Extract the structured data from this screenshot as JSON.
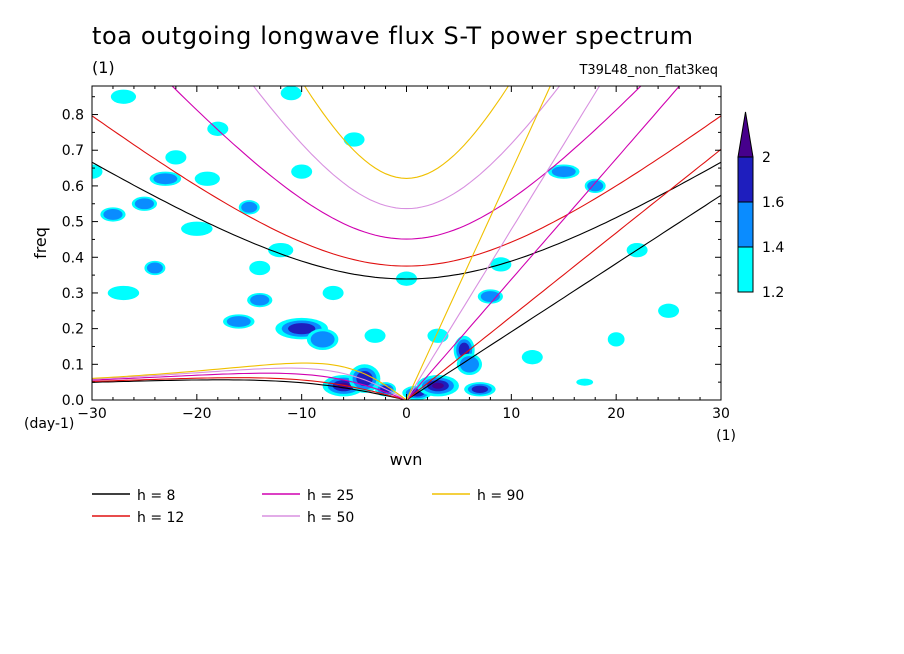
{
  "header": {
    "title": "toa outgoing longwave flux S-T power spectrum",
    "units": "(1)",
    "run": "T39L48_non_flat3keq"
  },
  "chart_data": {
    "type": "heatmap",
    "xlabel": "wvn",
    "ylabel": "freq",
    "xunit": "(1)",
    "yunit": "(day-1)",
    "xlim": [
      -30,
      30
    ],
    "ylim": [
      0,
      0.88
    ],
    "xticks": [
      -30,
      -20,
      -10,
      0,
      10,
      20,
      30
    ],
    "xtick_labels": [
      "−30",
      "−20",
      "−10",
      "0",
      "10",
      "20",
      "30"
    ],
    "yticks": [
      0.0,
      0.1,
      0.2,
      0.3,
      0.4,
      0.5,
      0.6,
      0.7,
      0.8
    ],
    "ytick_labels": [
      "0.0",
      "0.1",
      "0.2",
      "0.3",
      "0.4",
      "0.5",
      "0.6",
      "0.7",
      "0.8"
    ],
    "colorbar": {
      "levels": [
        1.2,
        1.4,
        1.6,
        2
      ],
      "labels": [
        "1.2",
        "1.4",
        "1.6",
        "2"
      ],
      "colors": [
        "#00ffff",
        "#0a8cff",
        "#1e1ebe",
        "#46008c"
      ]
    },
    "contour_blobs": [
      [
        -6,
        0.04,
        2.0,
        0.03,
        4
      ],
      [
        -4,
        0.06,
        1.5,
        0.04,
        3
      ],
      [
        -2,
        0.03,
        1.0,
        0.02,
        3
      ],
      [
        1,
        0.02,
        1.4,
        0.02,
        3
      ],
      [
        3,
        0.04,
        2.0,
        0.03,
        4
      ],
      [
        7,
        0.03,
        1.5,
        0.02,
        3
      ],
      [
        5.5,
        0.14,
        1.0,
        0.04,
        3
      ],
      [
        6,
        0.1,
        1.2,
        0.03,
        2
      ],
      [
        -10,
        0.2,
        2.5,
        0.03,
        3
      ],
      [
        -8,
        0.17,
        1.5,
        0.03,
        2
      ],
      [
        -16,
        0.22,
        1.5,
        0.02,
        2
      ],
      [
        -14,
        0.28,
        1.2,
        0.02,
        2
      ],
      [
        -25,
        0.55,
        1.2,
        0.02,
        2
      ],
      [
        -23,
        0.62,
        1.5,
        0.02,
        2
      ],
      [
        -24,
        0.37,
        1.0,
        0.02,
        2
      ],
      [
        -28,
        0.52,
        1.2,
        0.02,
        2
      ],
      [
        -18,
        0.76,
        1.0,
        0.02,
        1
      ],
      [
        -10,
        0.64,
        1.0,
        0.02,
        1
      ],
      [
        -15,
        0.54,
        1.0,
        0.02,
        2
      ],
      [
        -5,
        0.73,
        1.0,
        0.02,
        1
      ],
      [
        15,
        0.64,
        1.5,
        0.02,
        2
      ],
      [
        18,
        0.6,
        1.0,
        0.02,
        2
      ],
      [
        8,
        0.29,
        1.2,
        0.02,
        2
      ],
      [
        9,
        0.38,
        1.0,
        0.02,
        1
      ],
      [
        -20,
        0.48,
        1.5,
        0.02,
        1
      ],
      [
        -27,
        0.3,
        1.5,
        0.02,
        1
      ],
      [
        -12,
        0.42,
        1.2,
        0.02,
        1
      ],
      [
        22,
        0.42,
        1.0,
        0.02,
        1
      ],
      [
        25,
        0.25,
        1.0,
        0.02,
        1
      ],
      [
        17,
        0.05,
        0.8,
        0.01,
        1
      ],
      [
        -30,
        0.64,
        1.0,
        0.02,
        1
      ],
      [
        -27,
        0.85,
        1.2,
        0.02,
        1
      ],
      [
        -11,
        0.86,
        1.0,
        0.02,
        1
      ],
      [
        0,
        0.34,
        1.0,
        0.02,
        1
      ],
      [
        -3,
        0.18,
        1.0,
        0.02,
        1
      ],
      [
        3,
        0.18,
        1.0,
        0.02,
        1
      ],
      [
        -7,
        0.3,
        1.0,
        0.02,
        1
      ],
      [
        12,
        0.12,
        1.0,
        0.02,
        1
      ],
      [
        20,
        0.17,
        0.8,
        0.02,
        1
      ],
      [
        -19,
        0.62,
        1.2,
        0.02,
        1
      ],
      [
        -22,
        0.68,
        1.0,
        0.02,
        1
      ],
      [
        -14,
        0.37,
        1.0,
        0.02,
        1
      ]
    ],
    "dispersion_curves": {
      "legend_title": "h",
      "items": [
        {
          "label": "h =  8",
          "h": 8,
          "color": "#000000"
        },
        {
          "label": "h = 12",
          "h": 12,
          "color": "#e01010"
        },
        {
          "label": "h = 25",
          "h": 25,
          "color": "#d000b0"
        },
        {
          "label": "h = 50",
          "h": 50,
          "color": "#d890e0"
        },
        {
          "label": "h = 90",
          "h": 90,
          "color": "#f0c000"
        }
      ]
    }
  }
}
